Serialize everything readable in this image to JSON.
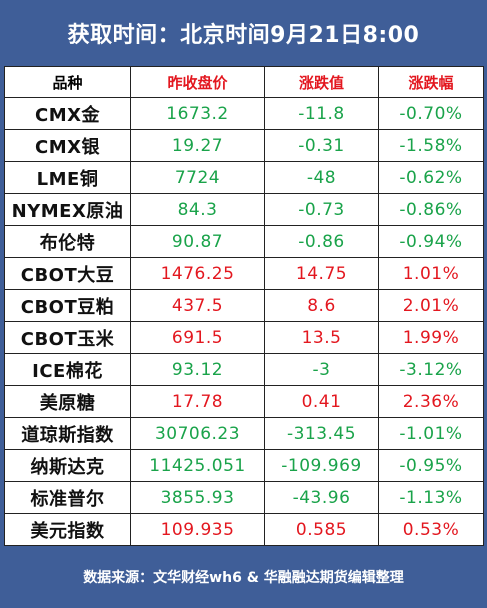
{
  "title": "获取时间：北京时间9月21日8:00",
  "colors": {
    "up": "#e3171f",
    "down": "#1aa34a",
    "header_red": "#e3171f",
    "frame": "#3f5e98"
  },
  "headers": [
    "品种",
    "昨收盘价",
    "涨跌值",
    "涨跌幅"
  ],
  "rows": [
    {
      "name": "CMX金",
      "close": "1673.2",
      "change": "-11.8",
      "pct": "-0.70%",
      "dir": "down"
    },
    {
      "name": "CMX银",
      "close": "19.27",
      "change": "-0.31",
      "pct": "-1.58%",
      "dir": "down"
    },
    {
      "name": "LME铜",
      "close": "7724",
      "change": "-48",
      "pct": "-0.62%",
      "dir": "down"
    },
    {
      "name": "NYMEX原油",
      "close": "84.3",
      "change": "-0.73",
      "pct": "-0.86%",
      "dir": "down"
    },
    {
      "name": "布伦特",
      "close": "90.87",
      "change": "-0.86",
      "pct": "-0.94%",
      "dir": "down"
    },
    {
      "name": "CBOT大豆",
      "close": "1476.25",
      "change": "14.75",
      "pct": "1.01%",
      "dir": "up"
    },
    {
      "name": "CBOT豆粕",
      "close": "437.5",
      "change": "8.6",
      "pct": "2.01%",
      "dir": "up"
    },
    {
      "name": "CBOT玉米",
      "close": "691.5",
      "change": "13.5",
      "pct": "1.99%",
      "dir": "up"
    },
    {
      "name": "ICE棉花",
      "close": "93.12",
      "change": "-3",
      "pct": "-3.12%",
      "dir": "down"
    },
    {
      "name": "美原糖",
      "close": "17.78",
      "change": "0.41",
      "pct": "2.36%",
      "dir": "up"
    },
    {
      "name": "道琼斯指数",
      "close": "30706.23",
      "change": "-313.45",
      "pct": "-1.01%",
      "dir": "down"
    },
    {
      "name": "纳斯达克",
      "close": "11425.051",
      "change": "-109.969",
      "pct": "-0.95%",
      "dir": "down"
    },
    {
      "name": "标准普尔",
      "close": "3855.93",
      "change": "-43.96",
      "pct": "-1.13%",
      "dir": "down"
    },
    {
      "name": "美元指数",
      "close": "109.935",
      "change": "0.585",
      "pct": "0.53%",
      "dir": "up"
    }
  ],
  "footer": "数据来源：文华财经wh6 & 华融融达期货编辑整理"
}
